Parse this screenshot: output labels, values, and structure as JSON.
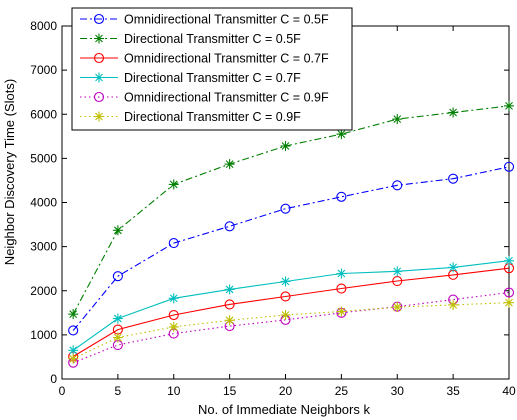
{
  "chart_data": {
    "type": "line",
    "title": "",
    "xlabel": "No. of Immediate Neighbors k",
    "ylabel": "Neighbor Discovery Time (Slots)",
    "xlim": [
      0,
      40
    ],
    "ylim": [
      0,
      8000
    ],
    "xticks": [
      0,
      5,
      10,
      15,
      20,
      25,
      30,
      35,
      40
    ],
    "yticks": [
      0,
      1000,
      2000,
      3000,
      4000,
      5000,
      6000,
      7000,
      8000
    ],
    "grid": false,
    "legend_position": "top-left",
    "x": [
      1,
      5,
      10,
      15,
      20,
      25,
      30,
      35,
      40
    ],
    "series": [
      {
        "name": "Omnidirectional Transmitter C = 0.5F",
        "color": "#0000ff",
        "line": "dashdot",
        "marker": "circle",
        "values": [
          1100,
          2330,
          3080,
          3460,
          3860,
          4130,
          4390,
          4540,
          4810
        ]
      },
      {
        "name": "Directional Transmitter C = 0.5F",
        "color": "#007f00",
        "line": "dashdot",
        "marker": "star",
        "values": [
          1470,
          3370,
          4410,
          4870,
          5280,
          5550,
          5890,
          6040,
          6190
        ]
      },
      {
        "name": "Omnidirectional Transmitter C = 0.7F",
        "color": "#ff0000",
        "line": "solid",
        "marker": "circle",
        "values": [
          510,
          1120,
          1450,
          1690,
          1870,
          2050,
          2220,
          2360,
          2510
        ]
      },
      {
        "name": "Directional Transmitter C = 0.7F",
        "color": "#00bfbf",
        "line": "solid",
        "marker": "star",
        "values": [
          650,
          1370,
          1830,
          2030,
          2210,
          2390,
          2440,
          2530,
          2680
        ]
      },
      {
        "name": "Omnidirectional Transmitter C = 0.9F",
        "color": "#bf00bf",
        "line": "dotted",
        "marker": "circle",
        "values": [
          370,
          770,
          1030,
          1200,
          1340,
          1500,
          1640,
          1800,
          1960
        ]
      },
      {
        "name": "Directional Transmitter C = 0.9F",
        "color": "#bfbf00",
        "line": "dotted",
        "marker": "star",
        "values": [
          460,
          940,
          1180,
          1330,
          1450,
          1530,
          1630,
          1680,
          1730
        ]
      }
    ]
  }
}
